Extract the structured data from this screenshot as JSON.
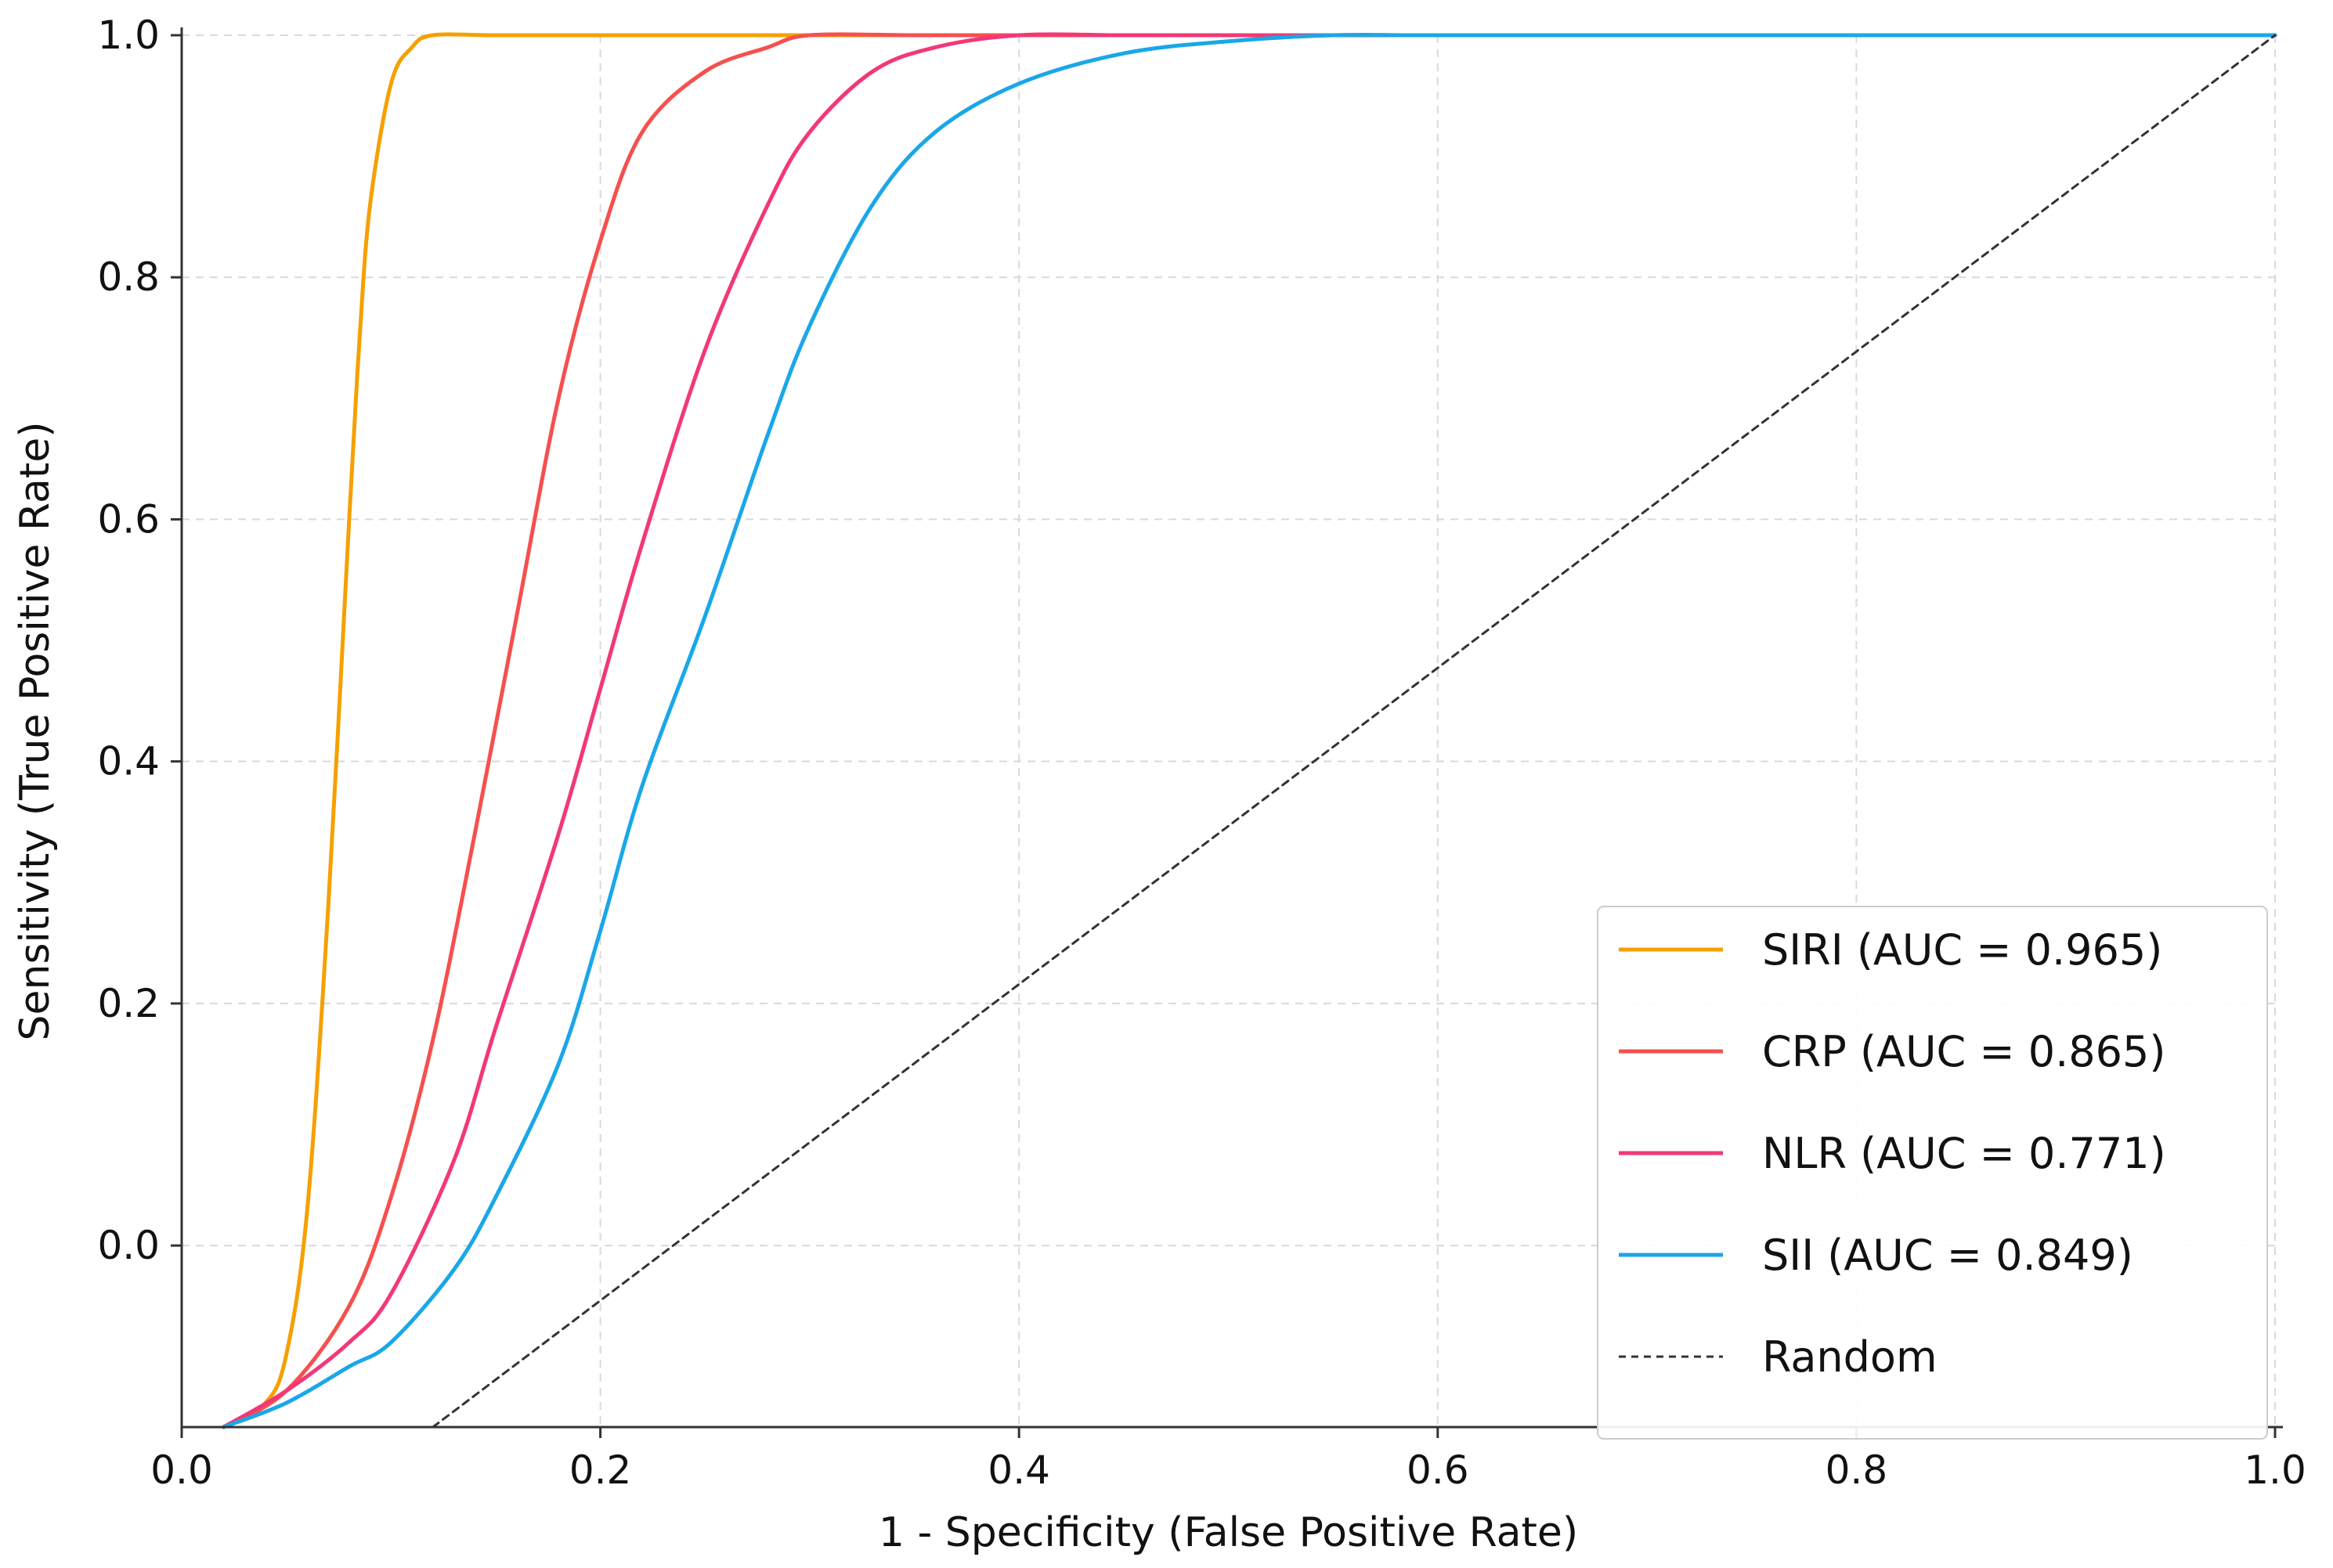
{
  "chart_data": {
    "type": "line",
    "xlabel": "1 - Specificity (False Positive Rate)",
    "ylabel": "Sensitivity (True Positive Rate)",
    "xlim": [
      0.0,
      1.0
    ],
    "ylim": [
      -0.15,
      1.0
    ],
    "x_ticks": [
      "0.0",
      "0.2",
      "0.4",
      "0.6",
      "0.8",
      "1.0"
    ],
    "y_ticks": [
      "0.0",
      "0.2",
      "0.4",
      "0.6",
      "0.8",
      "1.0"
    ],
    "grid": true,
    "legend_position": "lower-right",
    "series": [
      {
        "name": "SIRI (AUC = 0.965)",
        "color": "#f5a000",
        "x": [
          0.02,
          0.04,
          0.05,
          0.06,
          0.07,
          0.08,
          0.085,
          0.09,
          0.1,
          0.11,
          0.12,
          0.15,
          0.2,
          0.3,
          0.5,
          0.7,
          1.0
        ],
        "y": [
          -0.15,
          -0.13,
          -0.09,
          0.03,
          0.28,
          0.6,
          0.75,
          0.86,
          0.96,
          0.99,
          1.0,
          1.0,
          1.0,
          1.0,
          1.0,
          1.0,
          1.0
        ]
      },
      {
        "name": "CRP (AUC = 0.865)",
        "color": "#f5504e",
        "x": [
          0.02,
          0.05,
          0.08,
          0.1,
          0.12,
          0.14,
          0.16,
          0.18,
          0.2,
          0.22,
          0.25,
          0.28,
          0.3,
          0.35,
          0.4,
          0.6,
          1.0
        ],
        "y": [
          -0.15,
          -0.12,
          -0.05,
          0.04,
          0.17,
          0.34,
          0.52,
          0.7,
          0.83,
          0.92,
          0.97,
          0.99,
          1.0,
          1.0,
          1.0,
          1.0,
          1.0
        ]
      },
      {
        "name": "NLR (AUC = 0.771)",
        "color": "#f23877",
        "x": [
          0.02,
          0.05,
          0.08,
          0.1,
          0.13,
          0.15,
          0.18,
          0.2,
          0.22,
          0.25,
          0.28,
          0.3,
          0.33,
          0.36,
          0.4,
          0.45,
          0.5,
          0.6,
          1.0
        ],
        "y": [
          -0.15,
          -0.12,
          -0.08,
          -0.04,
          0.07,
          0.18,
          0.34,
          0.46,
          0.58,
          0.74,
          0.86,
          0.92,
          0.97,
          0.99,
          1.0,
          1.0,
          1.0,
          1.0,
          1.0
        ]
      },
      {
        "name": "SII (AUC = 0.849)",
        "color": "#1aa7e8",
        "x": [
          0.02,
          0.05,
          0.08,
          0.1,
          0.13,
          0.15,
          0.18,
          0.2,
          0.22,
          0.25,
          0.28,
          0.3,
          0.33,
          0.36,
          0.4,
          0.45,
          0.5,
          0.55,
          0.6,
          0.8,
          1.0
        ],
        "y": [
          -0.15,
          -0.13,
          -0.1,
          -0.08,
          -0.02,
          0.04,
          0.15,
          0.26,
          0.38,
          0.52,
          0.67,
          0.76,
          0.86,
          0.92,
          0.96,
          0.985,
          0.995,
          1.0,
          1.0,
          1.0,
          1.0
        ]
      },
      {
        "name": "Random",
        "color": "#333333",
        "dashed": true,
        "x": [
          0.12,
          1.0
        ],
        "y": [
          -0.15,
          1.0
        ]
      }
    ]
  }
}
